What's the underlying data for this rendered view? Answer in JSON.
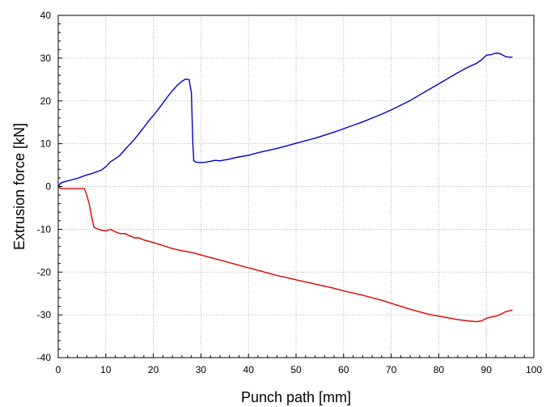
{
  "chart_data": {
    "type": "line",
    "title": "",
    "xlabel": "Punch path [mm]",
    "ylabel": "Extrusion force [kN]",
    "xlim": [
      0,
      100
    ],
    "ylim": [
      -40,
      40
    ],
    "x_ticks": [
      0,
      10,
      20,
      30,
      40,
      50,
      60,
      70,
      80,
      90,
      100
    ],
    "y_ticks": [
      -40,
      -30,
      -20,
      -10,
      0,
      10,
      20,
      30,
      40
    ],
    "grid": true,
    "legend": "none",
    "series": [
      {
        "color": "#0000cc",
        "points": [
          [
            0,
            0
          ],
          [
            0.5,
            0.8
          ],
          [
            1,
            1.0
          ],
          [
            2,
            1.3
          ],
          [
            3,
            1.6
          ],
          [
            4,
            1.9
          ],
          [
            5,
            2.3
          ],
          [
            6,
            2.7
          ],
          [
            7,
            3.0
          ],
          [
            8,
            3.4
          ],
          [
            9,
            3.8
          ],
          [
            10,
            4.6
          ],
          [
            11,
            5.8
          ],
          [
            12,
            6.5
          ],
          [
            13,
            7.3
          ],
          [
            14,
            8.6
          ],
          [
            15,
            9.8
          ],
          [
            16,
            11.0
          ],
          [
            17,
            12.4
          ],
          [
            18,
            13.8
          ],
          [
            19,
            15.3
          ],
          [
            20,
            16.6
          ],
          [
            21,
            18.0
          ],
          [
            22,
            19.5
          ],
          [
            23,
            21.0
          ],
          [
            24,
            22.4
          ],
          [
            25,
            23.6
          ],
          [
            26,
            24.6
          ],
          [
            26.8,
            25.1
          ],
          [
            27.5,
            25.0
          ],
          [
            28,
            22.0
          ],
          [
            28.3,
            10.0
          ],
          [
            28.5,
            6.0
          ],
          [
            29,
            5.7
          ],
          [
            30,
            5.6
          ],
          [
            31,
            5.7
          ],
          [
            32,
            5.9
          ],
          [
            33,
            6.1
          ],
          [
            34,
            6.0
          ],
          [
            35,
            6.2
          ],
          [
            36,
            6.4
          ],
          [
            37,
            6.7
          ],
          [
            38,
            6.9
          ],
          [
            40,
            7.3
          ],
          [
            42,
            7.9
          ],
          [
            44,
            8.4
          ],
          [
            46,
            8.9
          ],
          [
            48,
            9.5
          ],
          [
            50,
            10.1
          ],
          [
            52,
            10.7
          ],
          [
            54,
            11.3
          ],
          [
            56,
            12.0
          ],
          [
            58,
            12.7
          ],
          [
            60,
            13.5
          ],
          [
            62,
            14.3
          ],
          [
            64,
            15.1
          ],
          [
            66,
            16.0
          ],
          [
            68,
            16.9
          ],
          [
            70,
            17.9
          ],
          [
            72,
            19.0
          ],
          [
            74,
            20.1
          ],
          [
            76,
            21.4
          ],
          [
            78,
            22.7
          ],
          [
            80,
            24.0
          ],
          [
            82,
            25.3
          ],
          [
            84,
            26.6
          ],
          [
            86,
            27.8
          ],
          [
            88,
            28.8
          ],
          [
            89,
            29.6
          ],
          [
            90,
            30.7
          ],
          [
            91,
            30.8
          ],
          [
            92,
            31.2
          ],
          [
            93,
            31.0
          ],
          [
            94,
            30.4
          ],
          [
            95,
            30.2
          ],
          [
            95.5,
            30.3
          ]
        ]
      },
      {
        "color": "#dd0000",
        "points": [
          [
            0,
            0
          ],
          [
            0.5,
            -0.5
          ],
          [
            2,
            -0.5
          ],
          [
            4,
            -0.5
          ],
          [
            5.5,
            -0.5
          ],
          [
            6,
            -2.0
          ],
          [
            6.5,
            -4.0
          ],
          [
            7,
            -7.0
          ],
          [
            7.5,
            -9.5
          ],
          [
            8,
            -9.8
          ],
          [
            9,
            -10.2
          ],
          [
            10,
            -10.4
          ],
          [
            11,
            -10.0
          ],
          [
            12,
            -10.6
          ],
          [
            13,
            -11.0
          ],
          [
            14,
            -11.0
          ],
          [
            15,
            -11.5
          ],
          [
            16,
            -12.0
          ],
          [
            17,
            -12.0
          ],
          [
            18,
            -12.5
          ],
          [
            19,
            -12.8
          ],
          [
            20,
            -13.1
          ],
          [
            22,
            -13.8
          ],
          [
            24,
            -14.5
          ],
          [
            26,
            -15.0
          ],
          [
            28,
            -15.4
          ],
          [
            30,
            -16.0
          ],
          [
            32,
            -16.6
          ],
          [
            34,
            -17.2
          ],
          [
            36,
            -17.8
          ],
          [
            38,
            -18.4
          ],
          [
            40,
            -19.0
          ],
          [
            42,
            -19.6
          ],
          [
            44,
            -20.2
          ],
          [
            46,
            -20.8
          ],
          [
            48,
            -21.3
          ],
          [
            50,
            -21.8
          ],
          [
            52,
            -22.3
          ],
          [
            54,
            -22.8
          ],
          [
            56,
            -23.3
          ],
          [
            58,
            -23.8
          ],
          [
            60,
            -24.4
          ],
          [
            62,
            -24.9
          ],
          [
            64,
            -25.4
          ],
          [
            66,
            -26.0
          ],
          [
            68,
            -26.6
          ],
          [
            70,
            -27.3
          ],
          [
            72,
            -28.0
          ],
          [
            74,
            -28.7
          ],
          [
            76,
            -29.3
          ],
          [
            78,
            -29.9
          ],
          [
            80,
            -30.3
          ],
          [
            82,
            -30.7
          ],
          [
            84,
            -31.1
          ],
          [
            86,
            -31.4
          ],
          [
            88,
            -31.6
          ],
          [
            89,
            -31.4
          ],
          [
            90,
            -30.8
          ],
          [
            91,
            -30.5
          ],
          [
            92,
            -30.3
          ],
          [
            93,
            -29.9
          ],
          [
            94,
            -29.3
          ],
          [
            95,
            -29.0
          ],
          [
            95.5,
            -28.9
          ]
        ]
      }
    ]
  }
}
